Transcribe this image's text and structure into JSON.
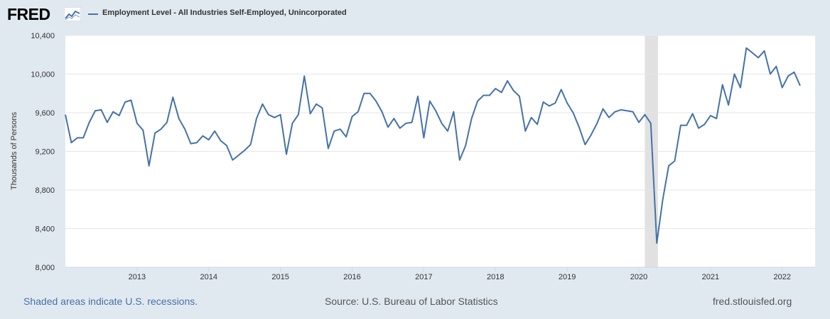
{
  "header": {
    "logo_text": "FRED",
    "logo_icon": "line-chart-icon",
    "series_title": "Employment Level - All Industries Self-Employed, Unincorporated",
    "series_color": "#4572a7"
  },
  "footer": {
    "recessions_note": "Shaded areas indicate U.S. recessions.",
    "source": "Source: U.S. Bureau of Labor Statistics",
    "site": "fred.stlouisfed.org"
  },
  "chart_data": {
    "type": "line",
    "title": "Employment Level - All Industries Self-Employed, Unincorporated",
    "ylabel": "Thousands of Persons",
    "xlabel": "",
    "ylim": [
      8000,
      10400
    ],
    "yticks": [
      8000,
      8400,
      8800,
      9200,
      9600,
      10000,
      10400
    ],
    "ytick_labels": [
      "8,000",
      "8,400",
      "8,800",
      "9,200",
      "9,600",
      "10,000",
      "10,400"
    ],
    "xticks": [
      "2013",
      "2014",
      "2015",
      "2016",
      "2017",
      "2018",
      "2019",
      "2020",
      "2021",
      "2022"
    ],
    "x_start": "2012-01",
    "grid": true,
    "recession": {
      "start": "2020-02",
      "end": "2020-04",
      "color": "#e1e1e1"
    },
    "series": [
      {
        "color": "#4572a7",
        "values": [
          9580,
          9290,
          9340,
          9340,
          9500,
          9620,
          9630,
          9500,
          9610,
          9570,
          9710,
          9730,
          9490,
          9420,
          9050,
          9390,
          9430,
          9500,
          9760,
          9540,
          9430,
          9280,
          9290,
          9360,
          9320,
          9410,
          9310,
          9260,
          9110,
          9160,
          9210,
          9270,
          9540,
          9690,
          9580,
          9550,
          9580,
          9170,
          9490,
          9580,
          9980,
          9590,
          9690,
          9650,
          9230,
          9410,
          9430,
          9350,
          9560,
          9610,
          9800,
          9800,
          9720,
          9610,
          9450,
          9540,
          9440,
          9490,
          9500,
          9770,
          9340,
          9720,
          9620,
          9490,
          9410,
          9610,
          9110,
          9260,
          9540,
          9720,
          9780,
          9780,
          9850,
          9810,
          9930,
          9830,
          9770,
          9410,
          9550,
          9480,
          9710,
          9670,
          9700,
          9840,
          9700,
          9600,
          9450,
          9270,
          9370,
          9490,
          9640,
          9550,
          9610,
          9630,
          9620,
          9610,
          9500,
          9580,
          9490,
          8250,
          8700,
          9050,
          9100,
          9470,
          9470,
          9590,
          9440,
          9480,
          9570,
          9540,
          9890,
          9680,
          10000,
          9860,
          10270,
          10220,
          10170,
          10240,
          10000,
          10080,
          9860,
          9980,
          10020,
          9880
        ]
      }
    ]
  }
}
